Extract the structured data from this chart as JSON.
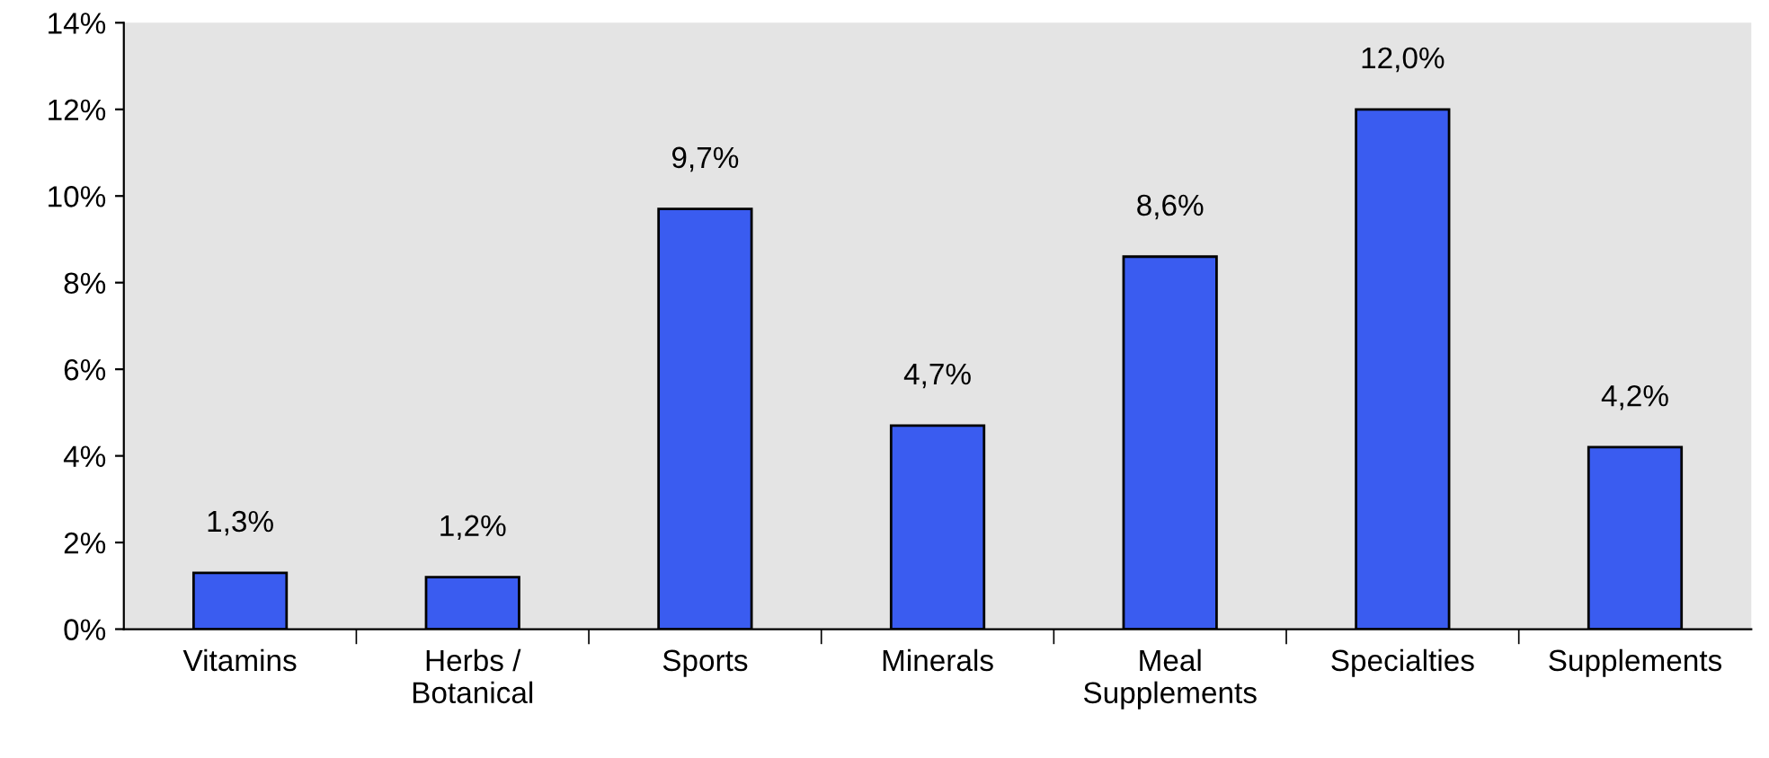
{
  "chart_data": {
    "type": "bar",
    "categories": [
      "Vitamins",
      "Herbs /\nBotanical",
      "Sports",
      "Minerals",
      "Meal\nSupplements",
      "Specialties",
      "Supplements"
    ],
    "values": [
      1.3,
      1.2,
      9.7,
      4.7,
      8.6,
      12.0,
      4.2
    ],
    "value_labels": [
      "1,3%",
      "1,2%",
      "9,7%",
      "4,7%",
      "8,6%",
      "12,0%",
      "4,2%"
    ],
    "color": "#3a5cf0",
    "ylim": [
      0,
      14
    ],
    "yticks": [
      {
        "value": 0,
        "label": "0%"
      },
      {
        "value": 2,
        "label": "2%"
      },
      {
        "value": 4,
        "label": "4%"
      },
      {
        "value": 6,
        "label": "6%"
      },
      {
        "value": 8,
        "label": "8%"
      },
      {
        "value": 10,
        "label": "10%"
      },
      {
        "value": 12,
        "label": "12%"
      },
      {
        "value": 14,
        "label": "14%"
      }
    ],
    "grid": false,
    "legend": false
  }
}
